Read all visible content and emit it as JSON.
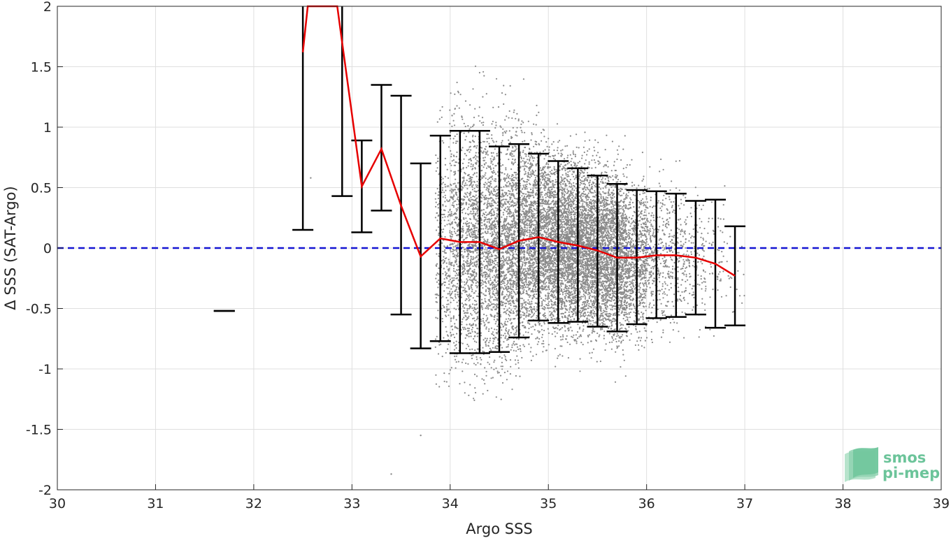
{
  "chart_data": {
    "type": "scatter",
    "title": "",
    "xlabel": "Argo SSS",
    "ylabel": "Δ SSS (SAT-Argo)",
    "xlim": [
      30,
      39
    ],
    "ylim": [
      -2,
      2
    ],
    "xticks": [
      30,
      31,
      32,
      33,
      34,
      35,
      36,
      37,
      38,
      39
    ],
    "yticks": [
      -2,
      -1.5,
      -1,
      -0.5,
      0,
      0.5,
      1,
      1.5,
      2
    ],
    "xtick_labels": [
      "30",
      "31",
      "32",
      "33",
      "34",
      "35",
      "36",
      "37",
      "38",
      "39"
    ],
    "ytick_labels": [
      "-2",
      "-1.5",
      "-1",
      "-0.5",
      "0",
      "0.5",
      "1",
      "1.5",
      "2"
    ],
    "grid": true,
    "reference_line": {
      "y": 0,
      "style": "dashed",
      "color": "#1414d2"
    },
    "scatter_cloud": {
      "description_color": "#8a8a8a",
      "bins": [
        {
          "x_from": 33.85,
          "x_to": 34.0,
          "count": 260,
          "center": 0.0,
          "spread": 0.9
        },
        {
          "x_from": 34.0,
          "x_to": 34.2,
          "count": 700,
          "center": 0.05,
          "spread": 0.9
        },
        {
          "x_from": 34.2,
          "x_to": 34.4,
          "count": 900,
          "center": 0.05,
          "spread": 0.9
        },
        {
          "x_from": 34.4,
          "x_to": 34.6,
          "count": 1000,
          "center": 0.0,
          "spread": 0.85
        },
        {
          "x_from": 34.6,
          "x_to": 34.8,
          "count": 1150,
          "center": 0.05,
          "spread": 0.8
        },
        {
          "x_from": 34.8,
          "x_to": 35.0,
          "count": 1300,
          "center": 0.08,
          "spread": 0.7
        },
        {
          "x_from": 35.0,
          "x_to": 35.2,
          "count": 1400,
          "center": 0.05,
          "spread": 0.65
        },
        {
          "x_from": 35.2,
          "x_to": 35.4,
          "count": 1500,
          "center": 0.02,
          "spread": 0.62
        },
        {
          "x_from": 35.4,
          "x_to": 35.6,
          "count": 1450,
          "center": -0.02,
          "spread": 0.6
        },
        {
          "x_from": 35.6,
          "x_to": 35.8,
          "count": 1300,
          "center": -0.06,
          "spread": 0.6
        },
        {
          "x_from": 35.8,
          "x_to": 36.0,
          "count": 700,
          "center": -0.08,
          "spread": 0.55
        },
        {
          "x_from": 36.0,
          "x_to": 36.2,
          "count": 300,
          "center": -0.06,
          "spread": 0.52
        },
        {
          "x_from": 36.2,
          "x_to": 36.4,
          "count": 220,
          "center": -0.06,
          "spread": 0.5
        },
        {
          "x_from": 36.4,
          "x_to": 36.6,
          "count": 130,
          "center": -0.08,
          "spread": 0.47
        },
        {
          "x_from": 36.6,
          "x_to": 36.8,
          "count": 60,
          "center": -0.12,
          "spread": 0.5
        },
        {
          "x_from": 36.8,
          "x_to": 37.0,
          "count": 20,
          "center": -0.2,
          "spread": 0.4
        }
      ],
      "sparse_points": [
        [
          32.58,
          0.58
        ],
        [
          33.3,
          0.4
        ],
        [
          33.5,
          0.6
        ],
        [
          33.7,
          -1.55
        ],
        [
          33.4,
          -1.87
        ]
      ]
    },
    "series": [
      {
        "name": "",
        "kind": "line",
        "color": "#e60000",
        "x": [
          32.5,
          32.55,
          32.85,
          32.9,
          33.1,
          33.3,
          33.5,
          33.7,
          33.9,
          34.1,
          34.3,
          34.5,
          34.7,
          34.9,
          35.1,
          35.3,
          35.5,
          35.7,
          35.9,
          36.1,
          36.3,
          36.5,
          36.7,
          36.9
        ],
        "y": [
          1.62,
          2.0,
          2.0,
          1.7,
          0.51,
          0.82,
          0.35,
          -0.07,
          0.08,
          0.05,
          0.05,
          -0.01,
          0.06,
          0.09,
          0.05,
          0.02,
          -0.02,
          -0.08,
          -0.08,
          -0.06,
          -0.06,
          -0.08,
          -0.13,
          -0.23
        ]
      }
    ],
    "error_bars": {
      "color": "#000000",
      "bars": [
        {
          "x": 31.7,
          "low": -0.52,
          "high": -0.52
        },
        {
          "x": 32.5,
          "low": 0.15,
          "high": 2.0
        },
        {
          "x": 32.9,
          "low": 0.43,
          "high": 2.0
        },
        {
          "x": 33.1,
          "low": 0.13,
          "high": 0.89
        },
        {
          "x": 33.3,
          "low": 0.31,
          "high": 1.35
        },
        {
          "x": 33.5,
          "low": -0.55,
          "high": 1.26
        },
        {
          "x": 33.7,
          "low": -0.83,
          "high": 0.7
        },
        {
          "x": 33.9,
          "low": -0.77,
          "high": 0.93
        },
        {
          "x": 34.1,
          "low": -0.87,
          "high": 0.97
        },
        {
          "x": 34.3,
          "low": -0.87,
          "high": 0.97
        },
        {
          "x": 34.5,
          "low": -0.86,
          "high": 0.84
        },
        {
          "x": 34.7,
          "low": -0.74,
          "high": 0.86
        },
        {
          "x": 34.9,
          "low": -0.6,
          "high": 0.78
        },
        {
          "x": 35.1,
          "low": -0.62,
          "high": 0.72
        },
        {
          "x": 35.3,
          "low": -0.61,
          "high": 0.66
        },
        {
          "x": 35.5,
          "low": -0.65,
          "high": 0.6
        },
        {
          "x": 35.7,
          "low": -0.69,
          "high": 0.53
        },
        {
          "x": 35.9,
          "low": -0.63,
          "high": 0.48
        },
        {
          "x": 36.1,
          "low": -0.58,
          "high": 0.47
        },
        {
          "x": 36.3,
          "low": -0.57,
          "high": 0.45
        },
        {
          "x": 36.5,
          "low": -0.55,
          "high": 0.39
        },
        {
          "x": 36.7,
          "low": -0.66,
          "high": 0.4
        },
        {
          "x": 36.9,
          "low": -0.64,
          "high": 0.18
        }
      ]
    }
  },
  "logo": {
    "line1": "smos",
    "line2": "pi-mep",
    "color": "#6cc49a"
  }
}
